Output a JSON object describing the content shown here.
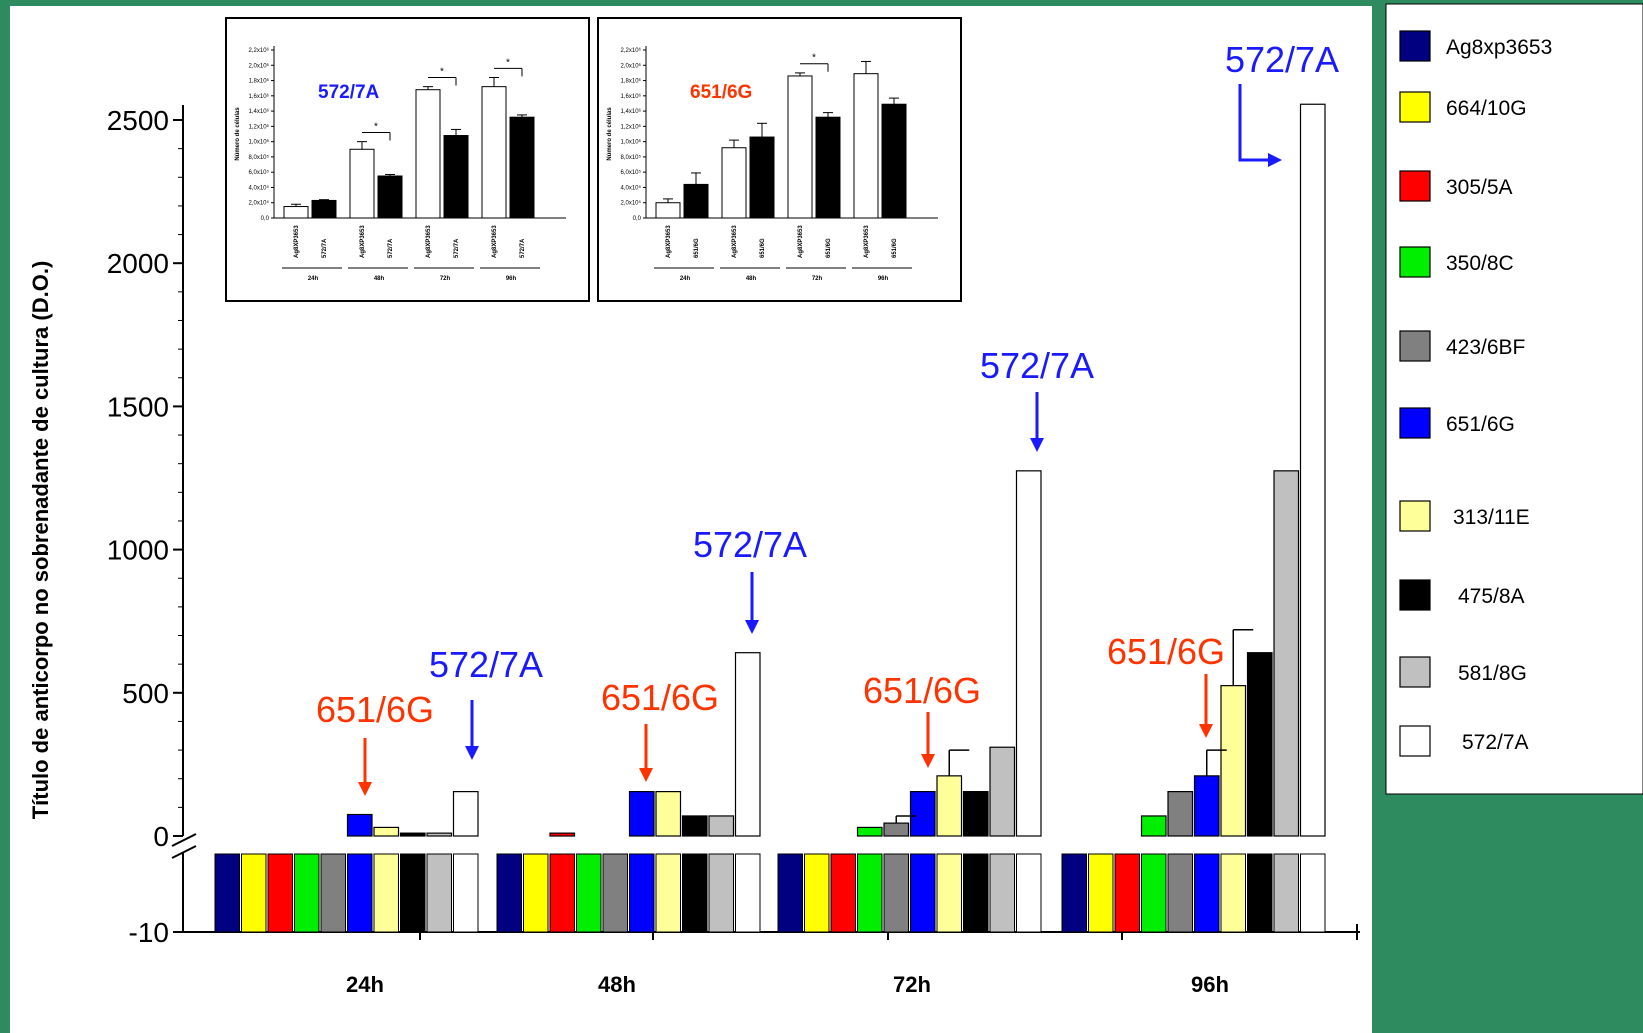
{
  "colors": {
    "background": "#2e8b5f",
    "label_red": "#ff3300",
    "label_blue": "#1a1aff"
  },
  "chart_data": [
    {
      "type": "bar",
      "ylabel": "Título de anticorpo no sobrenadante de cultura (D.O.)",
      "categories": [
        "24h",
        "48h",
        "72h",
        "96h"
      ],
      "yticks_upper": [
        "0",
        "500",
        "1000",
        "1500",
        "2000",
        "2500"
      ],
      "ytick_lower": "-10",
      "ylim": [
        0,
        2500
      ],
      "axis_break": true,
      "series": [
        {
          "name": "Ag8xp3653",
          "color": "#000080",
          "values": [
            0,
            0,
            0,
            0
          ]
        },
        {
          "name": "664/10G",
          "color": "#ffff00",
          "values": [
            0,
            0,
            0,
            0
          ]
        },
        {
          "name": "305/5A",
          "color": "#ff0000",
          "values": [
            0,
            10,
            0,
            0
          ]
        },
        {
          "name": "350/8C",
          "color": "#00ee00",
          "values": [
            0,
            0,
            30,
            70
          ]
        },
        {
          "name": "423/6BF",
          "color": "#808080",
          "values": [
            0,
            0,
            45,
            155
          ]
        },
        {
          "name": "651/6G",
          "color": "#0000ff",
          "values": [
            75,
            155,
            155,
            210
          ]
        },
        {
          "name": "313/11E",
          "color": "#ffff99",
          "values": [
            30,
            155,
            210,
            525
          ]
        },
        {
          "name": "475/8A",
          "color": "#000000",
          "values": [
            10,
            70,
            155,
            640
          ]
        },
        {
          "name": "581/8G",
          "color": "#c0c0c0",
          "values": [
            10,
            70,
            310,
            1275
          ]
        },
        {
          "name": "572/7A",
          "color": "#ffffff",
          "values": [
            155,
            640,
            1275,
            2555
          ]
        }
      ],
      "error_bars": [
        {
          "series": "423/6BF",
          "category": "72h",
          "upper": 70
        },
        {
          "series": "651/6G",
          "category": "96h",
          "upper": 300
        },
        {
          "series": "313/11E",
          "category": "72h",
          "upper": 300
        },
        {
          "series": "313/11E",
          "category": "96h",
          "upper": 720
        }
      ],
      "annotations": [
        {
          "text": "651/6G",
          "color": "red",
          "category": "24h",
          "target": "651/6G"
        },
        {
          "text": "572/7A",
          "color": "blue",
          "category": "24h",
          "target": "572/7A"
        },
        {
          "text": "651/6G",
          "color": "red",
          "category": "48h",
          "target": "651/6G"
        },
        {
          "text": "572/7A",
          "color": "blue",
          "category": "48h",
          "target": "572/7A"
        },
        {
          "text": "651/6G",
          "color": "red",
          "category": "72h",
          "target": "651/6G"
        },
        {
          "text": "572/7A",
          "color": "blue",
          "category": "72h",
          "target": "572/7A"
        },
        {
          "text": "651/6G",
          "color": "red",
          "category": "96h",
          "target": "651/6G"
        },
        {
          "text": "572/7A",
          "color": "blue",
          "category": "96h",
          "target": "572/7A"
        }
      ],
      "legend": "right"
    },
    {
      "type": "bar",
      "inset": "left",
      "label": "572/7A",
      "label_color": "blue",
      "ylabel": "Número de células",
      "yticks": [
        "0,0",
        "2,0x10⁵",
        "4,0x10⁵",
        "6,0x10⁵",
        "8,0x10⁵",
        "1,0x10⁶",
        "1,2x10⁶",
        "1,4x10⁶",
        "1,6x10⁶",
        "1,8x10⁶",
        "2,0x10⁶",
        "2,2x10⁶"
      ],
      "ylim": [
        0,
        2200000
      ],
      "groups": [
        "24h",
        "48h",
        "72h",
        "96h"
      ],
      "bar_labels": [
        "Ag8XP3653",
        "572/7A"
      ],
      "series": [
        {
          "name": "Ag8XP3653",
          "color": "#ffffff",
          "values": [
            150000,
            900000,
            1680000,
            1720000
          ],
          "errors": [
            30000,
            100000,
            40000,
            120000
          ]
        },
        {
          "name": "572/7A",
          "color": "#000000",
          "values": [
            230000,
            550000,
            1080000,
            1320000
          ],
          "errors": [
            10000,
            20000,
            80000,
            30000
          ]
        }
      ],
      "significance": [
        "*",
        "*",
        "*"
      ]
    },
    {
      "type": "bar",
      "inset": "right",
      "label": "651/6G",
      "label_color": "red",
      "ylabel": "Número de células",
      "yticks": [
        "0,0",
        "2,0x10⁵",
        "4,0x10⁵",
        "6,0x10⁵",
        "8,0x10⁵",
        "1,0x10⁶",
        "1,2x10⁶",
        "1,4x10⁶",
        "1,6x10⁶",
        "1,8x10⁶",
        "2,0x10⁶",
        "2,2x10⁶"
      ],
      "ylim": [
        0,
        2200000
      ],
      "groups": [
        "24h",
        "48h",
        "72h",
        "96h"
      ],
      "bar_labels": [
        "Ag8XP3653",
        "651/6G"
      ],
      "series": [
        {
          "name": "Ag8XP3653",
          "color": "#ffffff",
          "values": [
            200000,
            920000,
            1860000,
            1890000
          ],
          "errors": [
            50000,
            100000,
            40000,
            160000
          ]
        },
        {
          "name": "651/6G",
          "color": "#000000",
          "values": [
            440000,
            1060000,
            1320000,
            1490000
          ],
          "errors": [
            150000,
            180000,
            60000,
            80000
          ]
        }
      ],
      "significance": [
        "*"
      ]
    }
  ]
}
